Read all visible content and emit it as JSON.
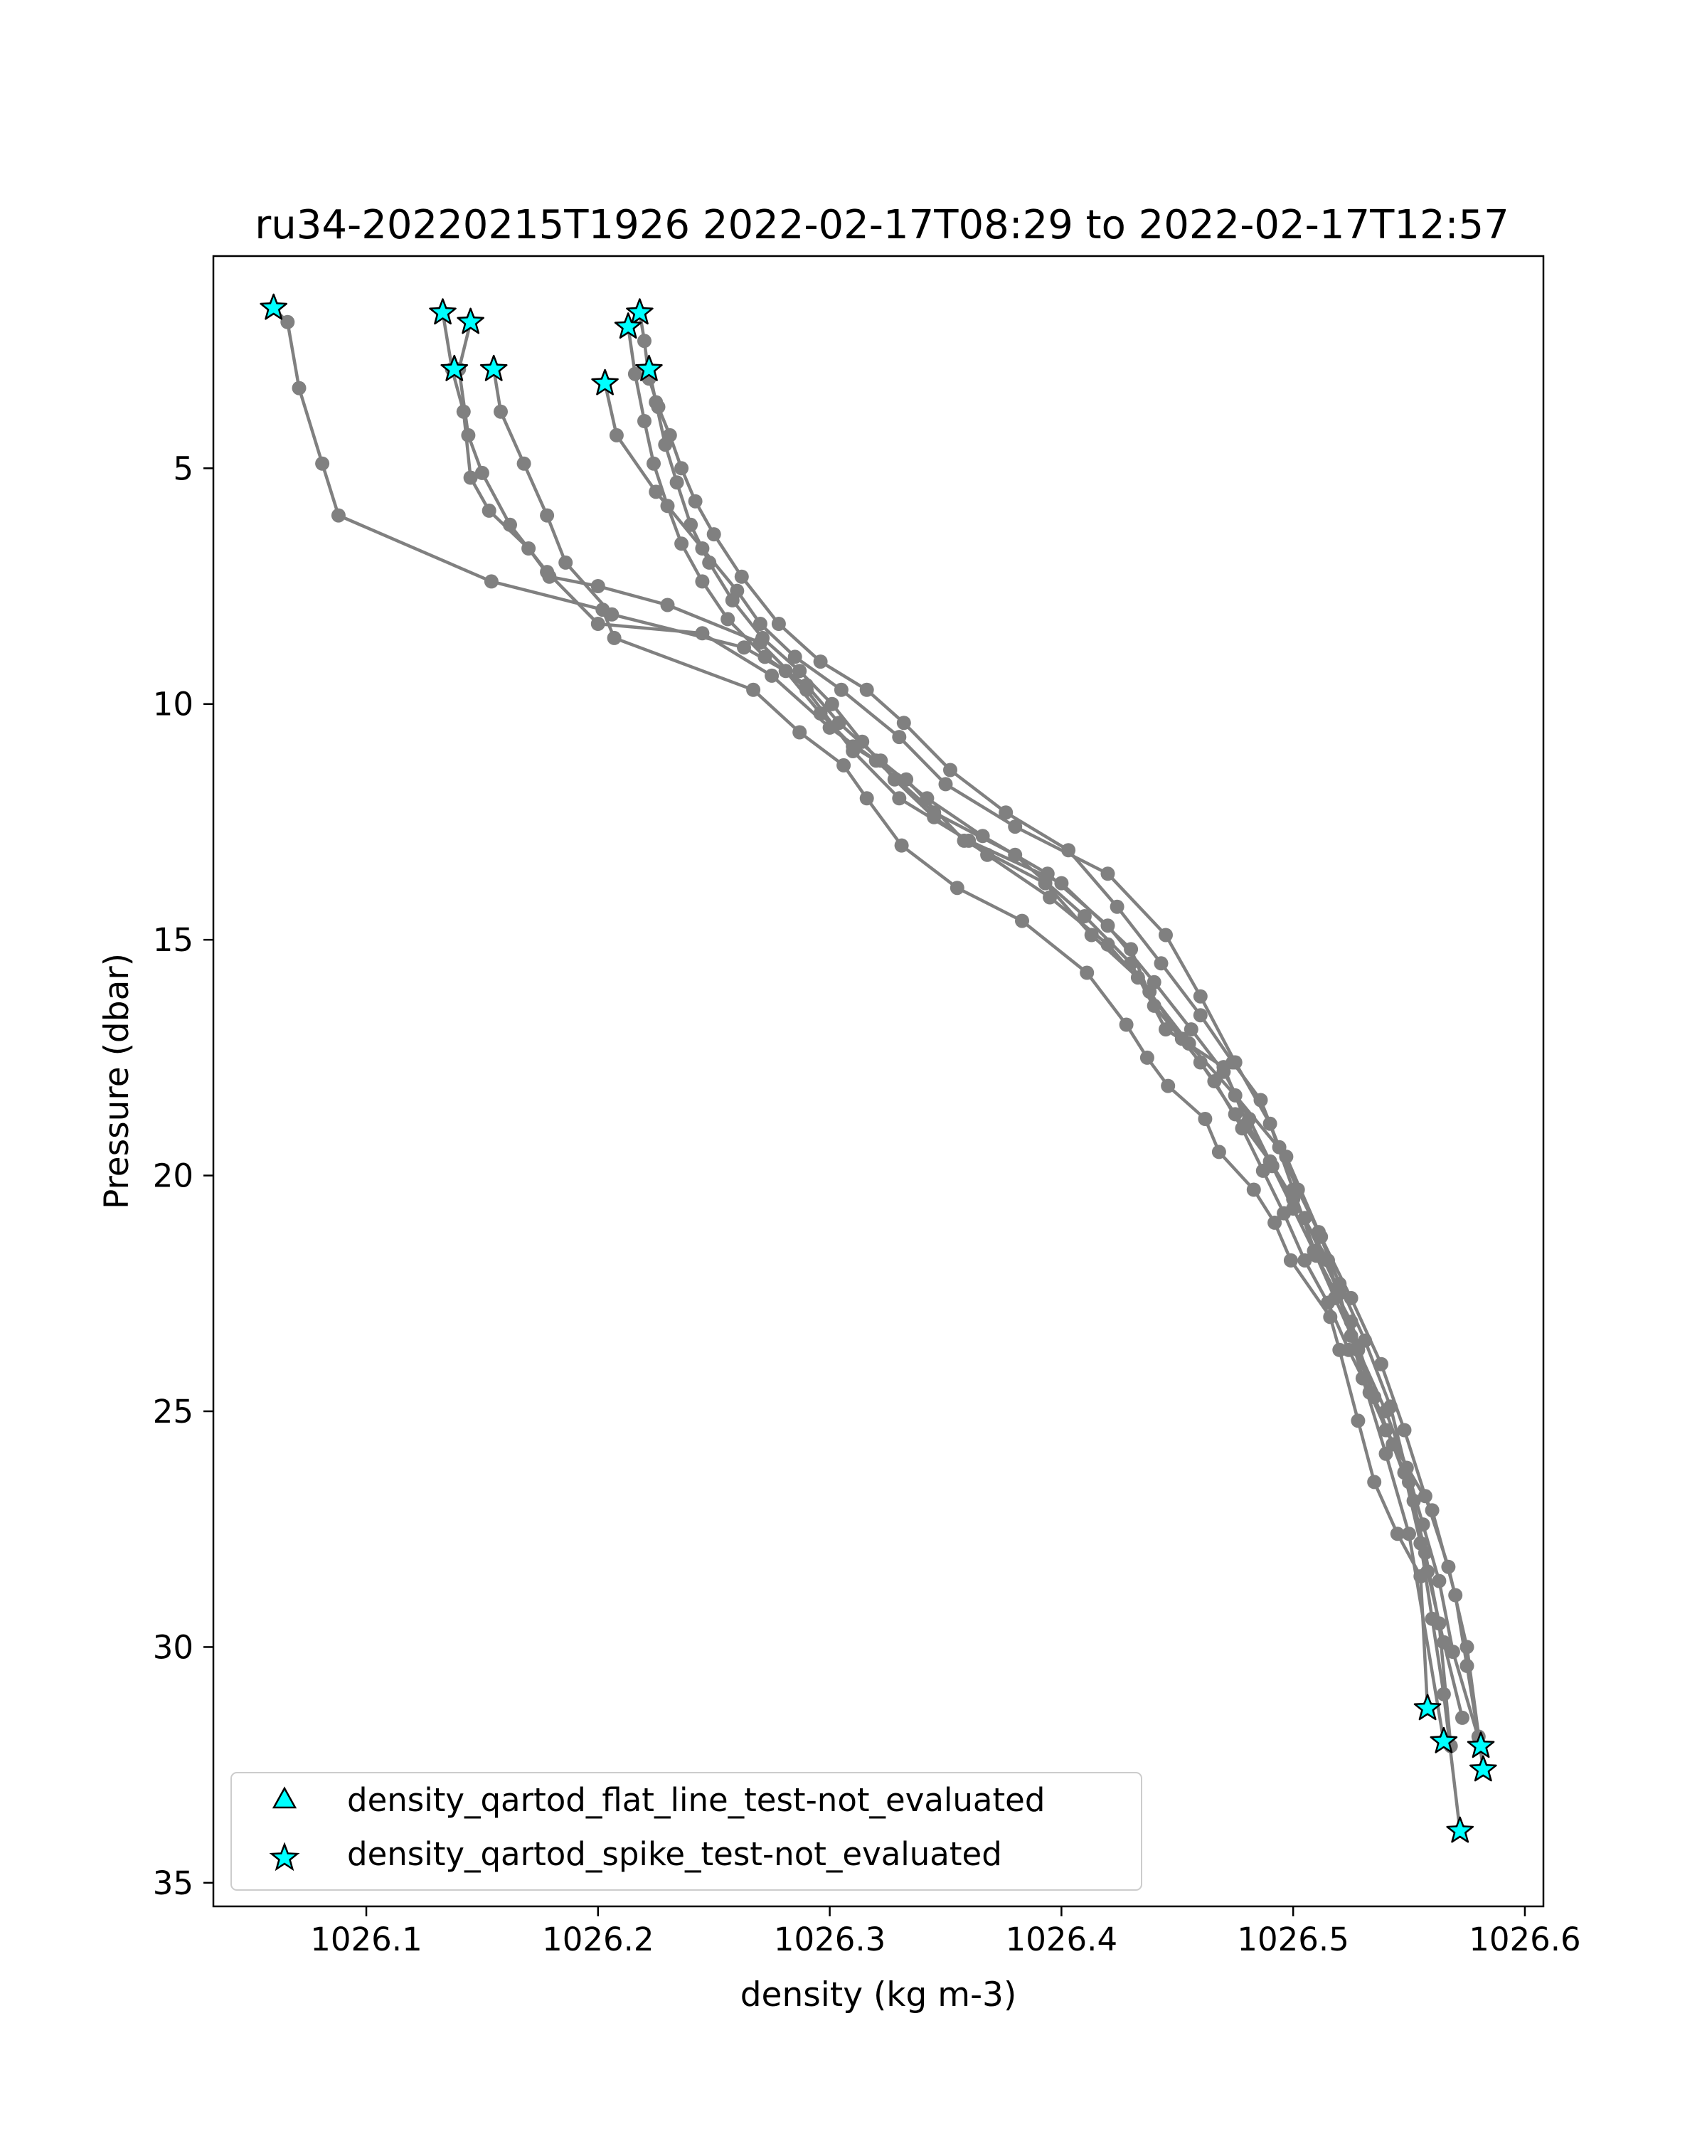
{
  "chart_data": {
    "type": "line",
    "title": "ru34-20220215T1926 2022-02-17T08:29 to 2022-02-17T12:57",
    "xlabel": "density (kg m-3)",
    "ylabel": "Pressure (dbar)",
    "xlim": [
      1026.034,
      1026.608
    ],
    "ylim": [
      35.5,
      0.5
    ],
    "y_inverted": true,
    "xticks": [
      1026.1,
      1026.2,
      1026.3,
      1026.4,
      1026.5,
      1026.6
    ],
    "xtick_labels": [
      "1026.1",
      "1026.2",
      "1026.3",
      "1026.4",
      "1026.5",
      "1026.6"
    ],
    "yticks": [
      5,
      10,
      15,
      20,
      25,
      30,
      35
    ],
    "ytick_labels": [
      "5",
      "10",
      "15",
      "20",
      "25",
      "30",
      "35"
    ],
    "grid": false,
    "line_color": "#808080",
    "marker_color": "#808080",
    "flag_color": "#00ffff",
    "legend_position": "lower-left",
    "legend": [
      {
        "label": "density_qartod_flat_line_test-not_evaluated",
        "marker": "triangle",
        "color": "#00ffff"
      },
      {
        "label": "density_qartod_spike_test-not_evaluated",
        "marker": "star",
        "color": "#00ffff"
      }
    ],
    "series": [
      {
        "x": [
          1026.06,
          1026.066,
          1026.071,
          1026.081,
          1026.088,
          1026.154,
          1026.202,
          1026.207,
          1026.267,
          1026.287,
          1026.306,
          1026.316,
          1026.331,
          1026.355,
          1026.383,
          1026.411,
          1026.428,
          1026.437,
          1026.446,
          1026.462,
          1026.468,
          1026.483,
          1026.492,
          1026.499,
          1026.516,
          1026.52,
          1026.528,
          1026.535,
          1026.545,
          1026.555,
          1026.558
        ],
        "y": [
          1.6,
          1.9,
          3.3,
          4.9,
          6.0,
          7.4,
          8.0,
          8.6,
          9.7,
          10.6,
          11.3,
          12.0,
          13.0,
          13.9,
          14.6,
          15.7,
          16.8,
          17.5,
          18.1,
          18.8,
          19.5,
          20.3,
          21.0,
          21.8,
          23.0,
          23.7,
          25.2,
          26.5,
          27.6,
          28.5,
          31.3
        ]
      },
      {
        "x": [
          1026.133,
          1026.137,
          1026.142,
          1026.145,
          1026.153,
          1026.17,
          1026.179,
          1026.2,
          1026.23,
          1026.27,
          1026.29,
          1026.31,
          1026.33,
          1026.36,
          1026.4,
          1026.43,
          1026.44,
          1026.46,
          1026.475,
          1026.49,
          1026.505,
          1026.52,
          1026.53,
          1026.54,
          1026.55,
          1026.565
        ],
        "y": [
          1.7,
          2.9,
          3.8,
          5.2,
          5.9,
          6.7,
          7.3,
          7.5,
          7.9,
          8.7,
          9.7,
          11.0,
          12.0,
          12.9,
          13.8,
          15.2,
          16.4,
          17.6,
          18.7,
          19.7,
          20.9,
          22.5,
          24.3,
          25.9,
          27.6,
          32.0
        ]
      },
      {
        "x": [
          1026.145,
          1026.14,
          1026.144,
          1026.15,
          1026.162,
          1026.178,
          1026.2,
          1026.245,
          1026.275,
          1026.3,
          1026.32,
          1026.345,
          1026.38,
          1026.41,
          1026.43,
          1026.445,
          1026.47,
          1026.48,
          1026.5,
          1026.515,
          1026.525,
          1026.54,
          1026.56,
          1026.57,
          1026.575,
          1026.58
        ],
        "y": [
          1.9,
          2.9,
          4.3,
          5.1,
          6.2,
          7.2,
          8.3,
          8.5,
          9.4,
          10.5,
          11.2,
          12.3,
          13.2,
          14.5,
          15.5,
          16.9,
          17.7,
          18.9,
          20.5,
          21.8,
          23.4,
          25.4,
          27.1,
          28.9,
          30.4,
          31.9
        ]
      },
      {
        "x": [
          1026.155,
          1026.158,
          1026.168,
          1026.178,
          1026.186,
          1026.206,
          1026.263,
          1026.281,
          1026.296,
          1026.31,
          1026.333,
          1026.358,
          1026.393,
          1026.413,
          1026.433,
          1026.455,
          1026.475,
          1026.497,
          1026.512,
          1026.525,
          1026.538,
          1026.548,
          1026.557,
          1026.567,
          1026.575,
          1026.582
        ],
        "y": [
          2.9,
          3.8,
          4.9,
          6.0,
          7.0,
          8.1,
          8.8,
          9.3,
          10.2,
          10.9,
          11.6,
          12.9,
          13.8,
          14.9,
          15.8,
          17.2,
          18.3,
          19.6,
          21.3,
          22.6,
          24.0,
          25.4,
          26.8,
          28.3,
          30.0,
          32.6
        ]
      },
      {
        "x": [
          1026.203,
          1026.208,
          1026.225,
          1026.245,
          1026.26,
          1026.27,
          1026.285,
          1026.305,
          1026.33,
          1026.35,
          1026.38,
          1026.42,
          1026.445,
          1026.46,
          1026.475,
          1026.49,
          1026.5,
          1026.51,
          1026.525,
          1026.535,
          1026.548,
          1026.555,
          1026.56,
          1026.565,
          1026.572
        ],
        "y": [
          3.2,
          4.3,
          5.5,
          6.7,
          7.6,
          8.3,
          9.0,
          9.7,
          10.7,
          11.7,
          12.6,
          13.6,
          14.9,
          16.2,
          17.6,
          18.9,
          20.3,
          21.7,
          23.1,
          24.7,
          26.3,
          27.8,
          29.4,
          31.0,
          33.9
        ]
      },
      {
        "x": [
          1026.218,
          1026.22,
          1026.222,
          1026.226,
          1026.231,
          1026.236,
          1026.242,
          1026.25,
          1026.262,
          1026.278,
          1026.296,
          1026.316,
          1026.332,
          1026.352,
          1026.376,
          1026.403,
          1026.424,
          1026.443,
          1026.46,
          1026.474,
          1026.486,
          1026.494,
          1026.502,
          1026.511,
          1026.52,
          1026.531,
          1026.542,
          1026.55,
          1026.557,
          1026.563,
          1026.568
        ],
        "y": [
          1.7,
          2.3,
          3.1,
          3.7,
          4.3,
          5.0,
          5.7,
          6.4,
          7.3,
          8.3,
          9.1,
          9.7,
          10.4,
          11.4,
          12.3,
          13.1,
          14.3,
          15.5,
          16.6,
          17.6,
          18.4,
          19.4,
          20.3,
          21.2,
          22.3,
          23.5,
          24.9,
          26.5,
          28.0,
          29.5,
          32.1
        ]
      },
      {
        "x": [
          1026.213,
          1026.216,
          1026.22,
          1026.224,
          1026.23,
          1026.236,
          1026.245,
          1026.256,
          1026.272,
          1026.29,
          1026.304,
          1026.322,
          1026.342,
          1026.366,
          1026.394,
          1026.42,
          1026.44,
          1026.456,
          1026.47,
          1026.481,
          1026.491,
          1026.5,
          1026.509,
          1026.518,
          1026.528,
          1026.54,
          1026.549,
          1026.556,
          1026.563,
          1026.569,
          1026.581
        ],
        "y": [
          2.0,
          3.0,
          4.0,
          4.9,
          5.8,
          6.6,
          7.4,
          8.2,
          9.0,
          9.6,
          10.4,
          11.2,
          12.0,
          12.8,
          13.6,
          14.7,
          15.9,
          16.9,
          17.8,
          18.8,
          19.8,
          20.7,
          21.6,
          22.6,
          23.7,
          25.0,
          26.2,
          27.4,
          28.6,
          30.1,
          32.1
        ]
      },
      {
        "x": [
          1026.222,
          1026.225,
          1026.229,
          1026.234,
          1026.24,
          1026.248,
          1026.258,
          1026.271,
          1026.287,
          1026.301,
          1026.314,
          1026.328,
          1026.345,
          1026.368,
          1026.395,
          1026.42,
          1026.438,
          1026.452,
          1026.466,
          1026.478,
          1026.487,
          1026.496,
          1026.505,
          1026.515,
          1026.524,
          1026.533,
          1026.543,
          1026.552,
          1026.558,
          1026.565,
          1026.573
        ],
        "y": [
          2.9,
          3.6,
          4.5,
          5.3,
          6.2,
          7.0,
          7.8,
          8.6,
          9.3,
          10.0,
          10.8,
          11.6,
          12.4,
          13.2,
          14.1,
          15.1,
          16.1,
          17.1,
          18.0,
          19.0,
          19.9,
          20.8,
          21.8,
          22.7,
          23.7,
          24.6,
          25.7,
          26.9,
          28.4,
          29.9,
          31.5
        ]
      }
    ],
    "spike_flags": [
      {
        "x": 1026.06,
        "y": 1.6
      },
      {
        "x": 1026.133,
        "y": 1.7
      },
      {
        "x": 1026.145,
        "y": 1.9
      },
      {
        "x": 1026.138,
        "y": 2.9
      },
      {
        "x": 1026.155,
        "y": 2.9
      },
      {
        "x": 1026.218,
        "y": 1.7
      },
      {
        "x": 1026.213,
        "y": 2.0
      },
      {
        "x": 1026.222,
        "y": 2.9
      },
      {
        "x": 1026.203,
        "y": 3.2
      },
      {
        "x": 1026.558,
        "y": 31.3
      },
      {
        "x": 1026.565,
        "y": 32.0
      },
      {
        "x": 1026.581,
        "y": 32.1
      },
      {
        "x": 1026.582,
        "y": 32.6
      },
      {
        "x": 1026.572,
        "y": 33.9
      }
    ]
  }
}
